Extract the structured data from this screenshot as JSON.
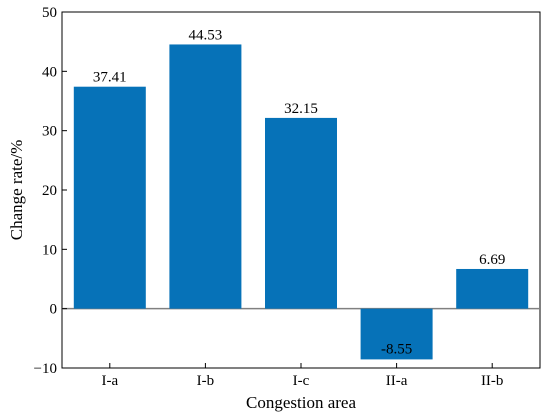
{
  "chart_data": {
    "type": "bar",
    "title": "",
    "xlabel": "Congestion area",
    "ylabel": "Change rate/%",
    "categories": [
      "I-a",
      "I-b",
      "I-c",
      "II-a",
      "II-b"
    ],
    "values": [
      37.41,
      44.53,
      32.15,
      -8.55,
      6.69
    ],
    "data_labels": [
      "37.41",
      "44.53",
      "32.15",
      "-8.55",
      "6.69"
    ],
    "ylim": [
      -10,
      50
    ],
    "yticks": [
      -10,
      0,
      10,
      20,
      30,
      40,
      50
    ],
    "grid": false,
    "zero_line": true,
    "bar_color": "#0672b8"
  }
}
